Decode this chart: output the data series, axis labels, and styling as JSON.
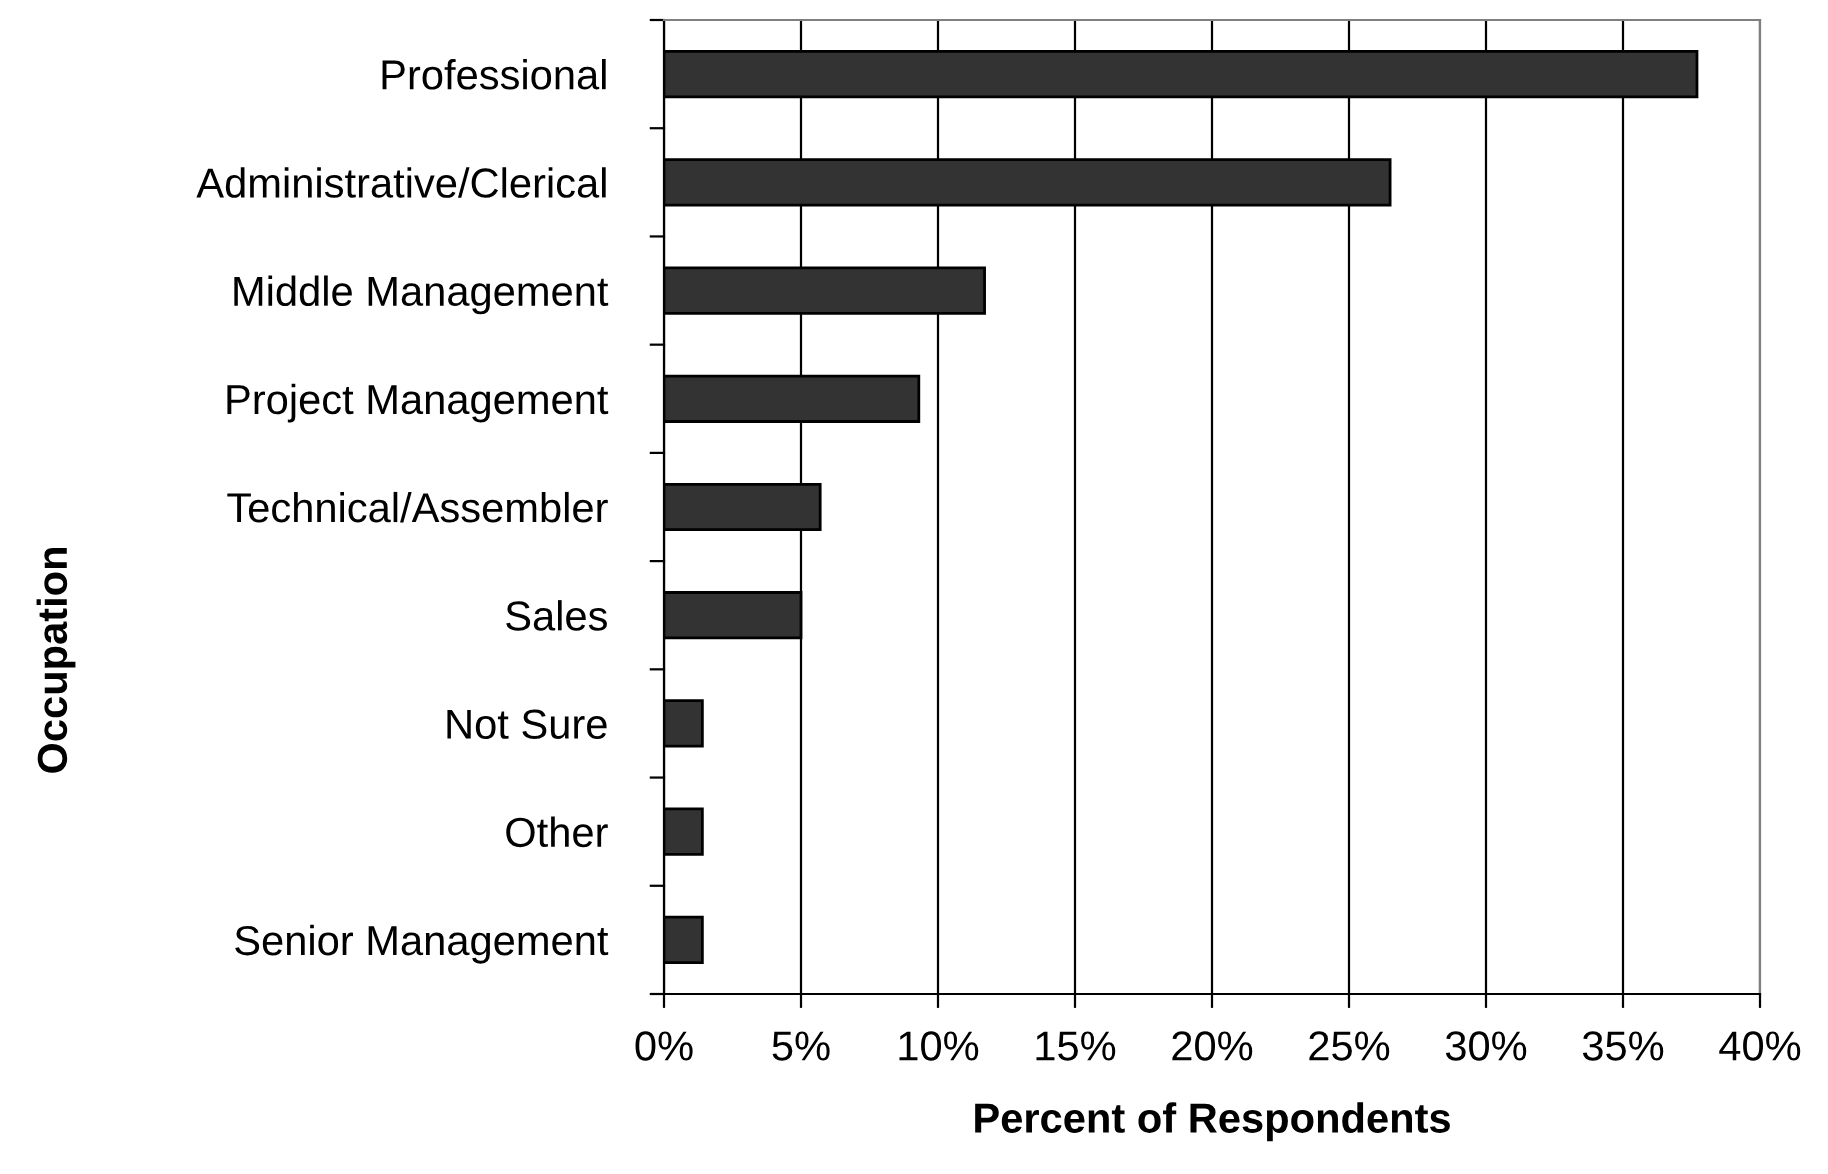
{
  "chart_data": {
    "type": "bar",
    "orientation": "horizontal",
    "xlabel": "Percent of Respondents",
    "ylabel": "Occupation",
    "categories": [
      "Professional",
      "Administrative/Clerical",
      "Middle Management",
      "Project Management",
      "Technical/Assembler",
      "Sales",
      "Not Sure",
      "Other",
      "Senior Management"
    ],
    "values": [
      37.7,
      26.5,
      11.7,
      9.3,
      5.7,
      5.0,
      1.4,
      1.4,
      1.4
    ],
    "color": "#333333",
    "xlim": [
      0,
      40
    ],
    "xticks": [
      {
        "value": 0,
        "label": "0%"
      },
      {
        "value": 5,
        "label": "5%"
      },
      {
        "value": 10,
        "label": "10%"
      },
      {
        "value": 15,
        "label": "15%"
      },
      {
        "value": 20,
        "label": "20%"
      },
      {
        "value": 25,
        "label": "25%"
      },
      {
        "value": 30,
        "label": "30%"
      },
      {
        "value": 35,
        "label": "35%"
      },
      {
        "value": 40,
        "label": "40%"
      }
    ],
    "grid": "x",
    "legend": false
  }
}
